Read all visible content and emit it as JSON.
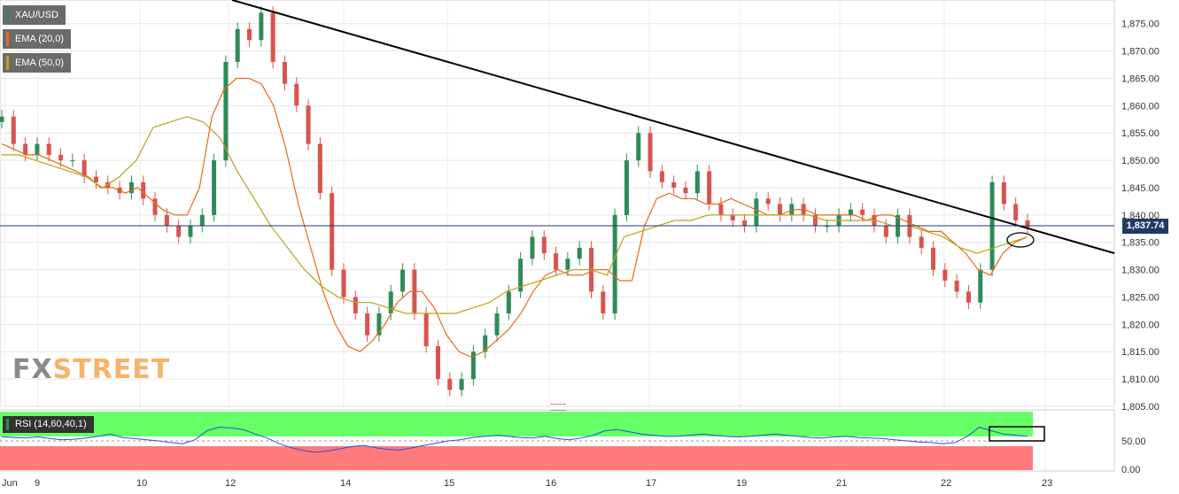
{
  "legend": {
    "symbol": "XAU/USD",
    "ema20": "EMA (20,0)",
    "ema50": "EMA (50,0)",
    "symbol_color": "#2e8b57",
    "ema20_color": "#e8681a",
    "ema50_color": "#b8a41a"
  },
  "rsi_label": "RSI (14,60,40,1)",
  "watermark": {
    "fx": "FX",
    "street": "STREET",
    "fx_color": "#8a8a8a",
    "street_color": "#f2b56b"
  },
  "current_price": "1,837.74",
  "colors": {
    "up": "#2e8b57",
    "down": "#d9534f",
    "trendline": "#000000",
    "rsi_line": "#2b4fd8",
    "rsi_overbought": "#66ff66",
    "rsi_oversold": "#ff7a7a",
    "price_line": "#1f3a68"
  },
  "chart_data": {
    "type": "line",
    "title": "XAU/USD",
    "ylim": [
      1805,
      1879
    ],
    "y_ticks": [
      "1,875.00",
      "1,870.00",
      "1,865.00",
      "1,860.00",
      "1,855.00",
      "1,850.00",
      "1,845.00",
      "1,840.00",
      "1,835.00",
      "1,830.00",
      "1,825.00",
      "1,820.00",
      "1,815.00",
      "1,810.00",
      "1,805.00"
    ],
    "x_ticks": [
      "Jun",
      "9",
      "10",
      "12",
      "14",
      "15",
      "16",
      "17",
      "19",
      "21",
      "22",
      "23"
    ],
    "series": [
      {
        "name": "XAU/USD",
        "values": [
          1858,
          1853,
          1851,
          1853,
          1851,
          1850,
          1850,
          1847,
          1846,
          1845,
          1844,
          1846,
          1843,
          1840,
          1838,
          1836,
          1838,
          1840,
          1850,
          1868,
          1874,
          1872,
          1877,
          1868,
          1864,
          1860,
          1853,
          1844,
          1830,
          1825,
          1822,
          1818,
          1822,
          1826,
          1830,
          1822,
          1816,
          1810,
          1808,
          1810,
          1815,
          1818,
          1822,
          1826,
          1832,
          1836,
          1833,
          1830,
          1832,
          1834,
          1826,
          1822,
          1840,
          1850,
          1855,
          1848,
          1846,
          1845,
          1844,
          1848,
          1842,
          1840,
          1839,
          1838,
          1843,
          1842,
          1840,
          1842,
          1840,
          1838,
          1838,
          1840,
          1841,
          1840,
          1838,
          1836,
          1840,
          1836,
          1834,
          1830,
          1828,
          1826,
          1824,
          1830,
          1846,
          1842,
          1839,
          1837.74
        ]
      },
      {
        "name": "EMA (20,0)",
        "values": [
          1853,
          1852,
          1851,
          1851,
          1850,
          1849,
          1848,
          1847,
          1845,
          1845,
          1844,
          1845,
          1843,
          1841,
          1840,
          1840,
          1845,
          1858,
          1863,
          1865,
          1865,
          1864,
          1860,
          1852,
          1842,
          1834,
          1826,
          1820,
          1816,
          1815,
          1817,
          1820,
          1824,
          1826,
          1826,
          1823,
          1818,
          1815,
          1814,
          1815,
          1817,
          1819,
          1822,
          1826,
          1829,
          1830,
          1829,
          1829,
          1830,
          1830,
          1828,
          1828,
          1838,
          1843,
          1844,
          1843,
          1843,
          1842,
          1842,
          1843,
          1842,
          1841,
          1840,
          1840,
          1841,
          1841,
          1840,
          1840,
          1840,
          1840,
          1839,
          1840,
          1840,
          1839,
          1838,
          1837,
          1837,
          1835,
          1833,
          1830,
          1829,
          1833,
          1835,
          1836
        ]
      },
      {
        "name": "EMA (50,0)",
        "values": [
          1851,
          1851,
          1850,
          1849,
          1848,
          1847,
          1845,
          1847,
          1850,
          1856,
          1857,
          1858,
          1857,
          1854,
          1848,
          1843,
          1838,
          1834,
          1830,
          1827,
          1825,
          1824,
          1824,
          1823,
          1822,
          1822,
          1822,
          1822,
          1823,
          1824,
          1826,
          1827,
          1828,
          1829,
          1830,
          1830,
          1829,
          1836,
          1837,
          1838,
          1839,
          1839,
          1840,
          1840,
          1840,
          1840,
          1840,
          1840,
          1840,
          1839,
          1839,
          1839,
          1839,
          1838,
          1838,
          1837,
          1836,
          1834,
          1833,
          1834,
          1835,
          1836
        ]
      }
    ],
    "rsi": {
      "ylim": [
        0,
        100
      ],
      "y_ticks": [
        "0.00",
        "50.00"
      ],
      "values": [
        57,
        56,
        55,
        57,
        54,
        52,
        53,
        55,
        58,
        62,
        56,
        54,
        52,
        50,
        47,
        45,
        52,
        68,
        74,
        73,
        70,
        62,
        55,
        45,
        38,
        33,
        30,
        32,
        36,
        40,
        42,
        38,
        35,
        34,
        38,
        42,
        46,
        50,
        52,
        56,
        58,
        60,
        58,
        56,
        55,
        58,
        54,
        52,
        55,
        60,
        68,
        70,
        66,
        62,
        60,
        58,
        58,
        60,
        62,
        60,
        58,
        57,
        58,
        60,
        62,
        60,
        58,
        56,
        55,
        57,
        58,
        56,
        55,
        54,
        52,
        50,
        48,
        47,
        45,
        47,
        58,
        74,
        68,
        62,
        60,
        58
      ]
    }
  }
}
